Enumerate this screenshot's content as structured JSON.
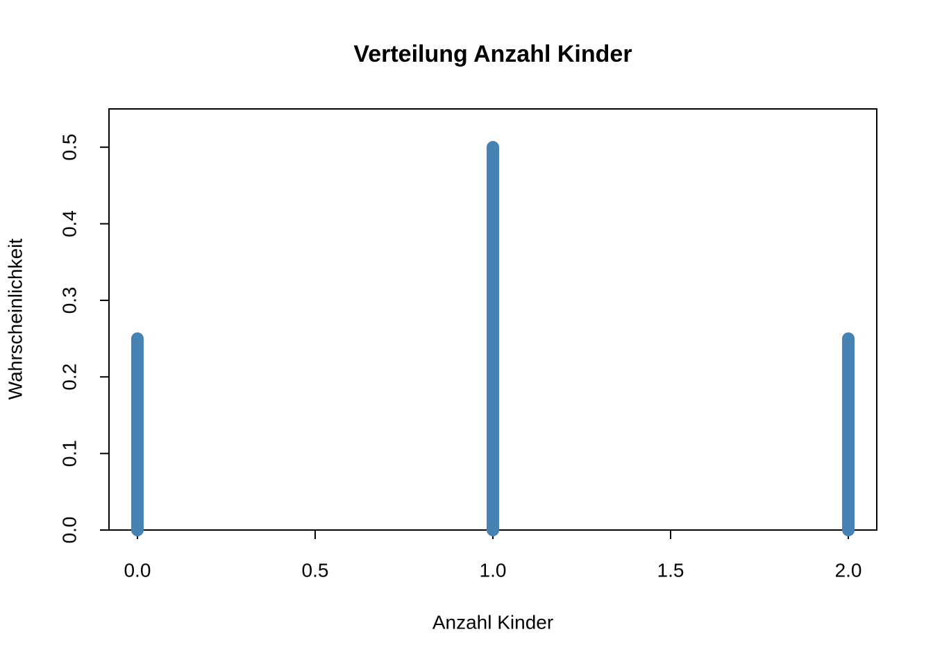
{
  "chart_data": {
    "type": "stem",
    "title": "Verteilung Anzahl Kinder",
    "x_label": "Anzahl Kinder",
    "y_label": "Wahrscheinlichkeit",
    "x": [
      0,
      1,
      2
    ],
    "values": [
      0.25,
      0.5,
      0.25
    ],
    "color": "#4682b4",
    "xlim": [
      -0.08,
      2.08
    ],
    "ylim": [
      0,
      0.55
    ],
    "xticks": [
      {
        "value": 0,
        "label": "0.0"
      },
      0.5,
      {
        "value": 1,
        "label": "1.0"
      },
      1.5,
      {
        "value": 2,
        "label": "2.0"
      }
    ],
    "yticks": [
      {
        "value": 0,
        "label": "0.0"
      },
      0.1,
      0.2,
      0.3,
      0.4,
      0.5
    ]
  }
}
